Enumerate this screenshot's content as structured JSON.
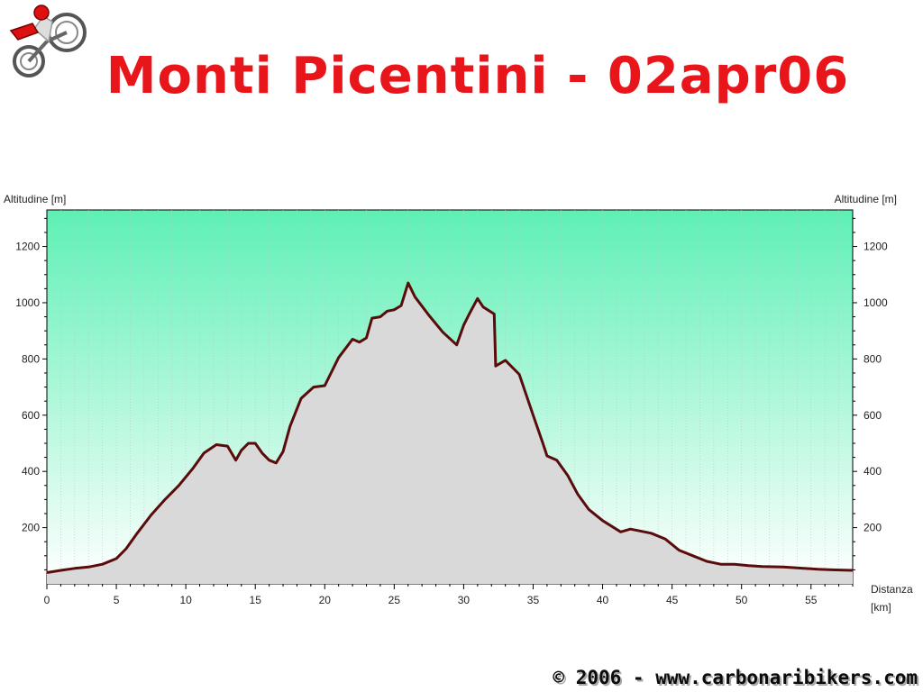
{
  "page": {
    "title": "Monti Picentini - 02apr06",
    "footer": "© 2006 - www.carbonaribikers.com"
  },
  "chart_data": {
    "type": "area",
    "title": "Monti Picentini - 02apr06",
    "ylabel_left": "Altitudine [m]",
    "ylabel_right": "Altitudine [m]",
    "xlabel_line1": "Distanza",
    "xlabel_line2": "[km]",
    "xlim": [
      0,
      58
    ],
    "ylim": [
      0,
      1330
    ],
    "xticks": [
      0,
      5,
      10,
      15,
      20,
      25,
      30,
      35,
      40,
      45,
      50,
      55
    ],
    "yticks": [
      200,
      400,
      600,
      800,
      1000,
      1200
    ],
    "grid": "vertical dotted",
    "colors": {
      "line": "#5a0c0c",
      "fill": "#d9d9d9",
      "bg_top": "#5ef0b5",
      "bg_bottom": "#ffffff"
    },
    "series": [
      {
        "x": [
          0,
          1,
          2,
          3,
          4,
          5,
          5.7,
          6.5,
          7.5,
          8.5,
          9.5,
          10.5,
          11.3,
          12.2,
          13,
          13.6,
          14,
          14.5,
          15,
          15.5,
          16,
          16.5,
          17,
          17.5,
          18.3,
          19.2,
          20,
          21,
          22,
          22.5,
          23,
          23.4,
          24,
          24.5,
          25,
          25.5,
          26,
          26.5,
          27.5,
          28.5,
          29.5,
          30,
          30.4,
          31,
          31.4,
          32.2,
          32.3,
          33,
          34,
          35,
          35.7,
          36,
          36.7,
          37.5,
          38.2,
          39,
          40,
          41.3,
          42,
          42.5,
          43.5,
          44.5,
          45.5,
          46.5,
          47.5,
          48.5,
          49.5,
          50.5,
          51.5,
          53,
          54.5,
          55.5,
          56.5,
          58
        ],
        "y": [
          40,
          48,
          55,
          60,
          70,
          90,
          125,
          180,
          245,
          300,
          350,
          410,
          465,
          495,
          490,
          440,
          475,
          500,
          500,
          465,
          440,
          430,
          470,
          560,
          660,
          700,
          705,
          805,
          870,
          860,
          875,
          945,
          950,
          970,
          975,
          990,
          1070,
          1020,
          955,
          895,
          850,
          920,
          960,
          1015,
          985,
          960,
          775,
          795,
          745,
          600,
          500,
          455,
          440,
          385,
          320,
          265,
          225,
          185,
          195,
          190,
          180,
          160,
          120,
          100,
          80,
          70,
          70,
          65,
          62,
          60,
          55,
          52,
          50,
          48
        ]
      }
    ]
  }
}
